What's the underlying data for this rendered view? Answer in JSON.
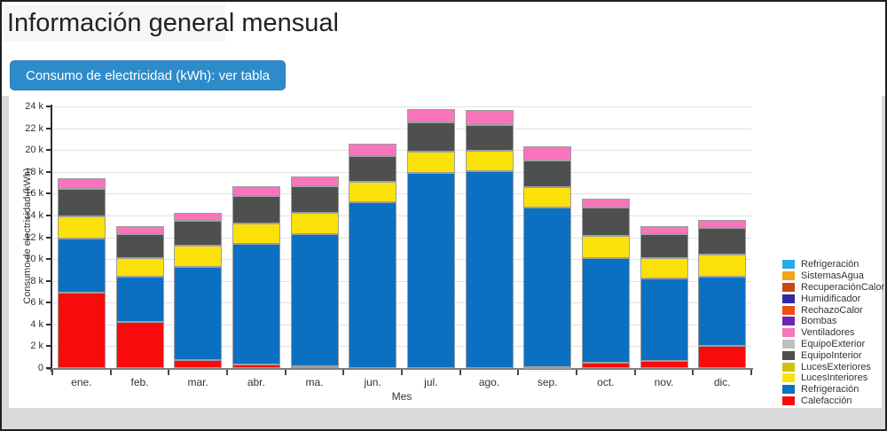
{
  "page": {
    "title": "Información general mensual",
    "button_label": "Consumo de electricidad (kWh): ver tabla",
    "button_color": "#2e8bc9"
  },
  "chart_data": {
    "type": "bar",
    "stacked": true,
    "xlabel": "Mes",
    "ylabel": "Consumo de electricidad (kWh)",
    "ylim": [
      0,
      24000
    ],
    "ytick_step": 2000,
    "ytick_labels": [
      "0",
      "2 k",
      "4 k",
      "6 k",
      "8 k",
      "10 k",
      "12 k",
      "14 k",
      "16 k",
      "18 k",
      "20 k",
      "22 k",
      "24 k"
    ],
    "grid": true,
    "legend_position": "right",
    "categories": [
      "ene.",
      "feb.",
      "mar.",
      "abr.",
      "ma.",
      "jun.",
      "jul.",
      "ago.",
      "sep.",
      "oct.",
      "nov.",
      "dic."
    ],
    "series": [
      {
        "name": "Calefacción",
        "color": "#f80b0b",
        "values": [
          6900,
          4200,
          700,
          300,
          200,
          0,
          0,
          0,
          100,
          500,
          650,
          2000
        ]
      },
      {
        "name": "Refrigeración",
        "color": "#0c70c2",
        "values": [
          5000,
          4150,
          8600,
          11050,
          12050,
          15200,
          17900,
          18100,
          14650,
          9600,
          7550,
          6400
        ]
      },
      {
        "name": "LucesInteriores",
        "color": "#fbe10a",
        "values": [
          2000,
          1700,
          1900,
          1950,
          1950,
          1900,
          1950,
          1800,
          1850,
          2000,
          1850,
          2000
        ]
      },
      {
        "name": "EquipoInterior",
        "color": "#4d504e",
        "values": [
          2500,
          2250,
          2300,
          2450,
          2450,
          2350,
          2650,
          2400,
          2450,
          2600,
          2250,
          2450
        ]
      },
      {
        "name": "Ventiladores",
        "color": "#f874bb",
        "values": [
          1000,
          750,
          750,
          900,
          900,
          1150,
          1250,
          1350,
          1250,
          800,
          700,
          750
        ]
      }
    ],
    "legend": [
      {
        "name": "Refrigeración",
        "color": "#29abe2"
      },
      {
        "name": "SistemasAgua",
        "color": "#f5a31e"
      },
      {
        "name": "RecuperaciónCalor",
        "color": "#c7490f"
      },
      {
        "name": "Humidificador",
        "color": "#2f2ba2"
      },
      {
        "name": "RechazoCalor",
        "color": "#f04e10"
      },
      {
        "name": "Bombas",
        "color": "#7123b5"
      },
      {
        "name": "Ventiladores",
        "color": "#f874bb"
      },
      {
        "name": "EquipoExterior",
        "color": "#bfbfbf"
      },
      {
        "name": "EquipoInterior",
        "color": "#4d504e"
      },
      {
        "name": "LucesExteriores",
        "color": "#cfc00d"
      },
      {
        "name": "LucesInteriores",
        "color": "#fbe10a"
      },
      {
        "name": "Refrigeración",
        "color": "#0c70c2"
      },
      {
        "name": "Calefacción",
        "color": "#f80b0b"
      }
    ]
  }
}
